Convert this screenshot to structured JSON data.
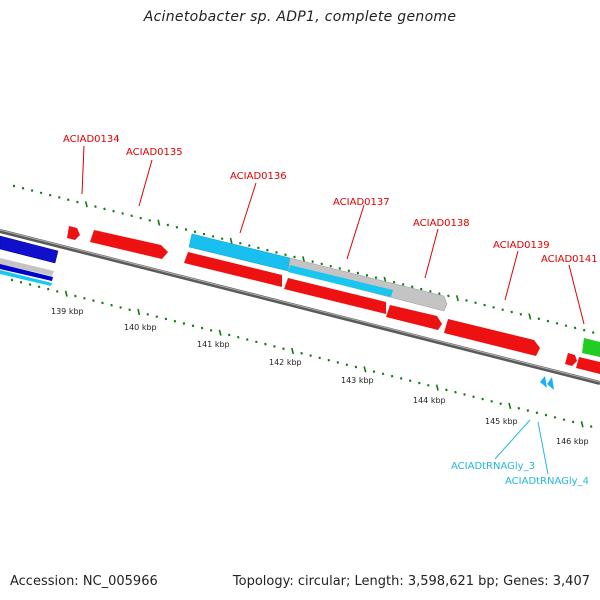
{
  "title": "Acinetobacter sp. ADP1, complete genome",
  "accession_text": "Accession: NC_005966",
  "summary_text": "Topology: circular; Length: 3,598,621 bp; Genes: 3,407",
  "colors": {
    "forward_cds": "#ff0000",
    "reverse_cds": "#ff0000",
    "cds_blue": "#1a8fdc",
    "cds_cyan": "#19c6f0",
    "cds_grey": "#c0c0c0",
    "dark_blue": "#0000cc",
    "green": "#22cc22",
    "trna": "#22b8dd",
    "tick": "#117711",
    "backbone": "#808080"
  },
  "kbp_labels": [
    "139 kbp",
    "140 kbp",
    "141 kbp",
    "142 kbp",
    "143 kbp",
    "144 kbp",
    "145 kbp",
    "146 kbp"
  ],
  "gene_labels": [
    {
      "text": "ACIAD0134",
      "color_key": "forward_cds"
    },
    {
      "text": "ACIAD0135",
      "color_key": "forward_cds"
    },
    {
      "text": "ACIAD0136",
      "color_key": "forward_cds"
    },
    {
      "text": "ACIAD0137",
      "color_key": "forward_cds"
    },
    {
      "text": "ACIAD0138",
      "color_key": "forward_cds"
    },
    {
      "text": "ACIAD0139",
      "color_key": "forward_cds"
    },
    {
      "text": "ACIAD0141",
      "color_key": "forward_cds"
    },
    {
      "text": "ACIADtRNAGly_3",
      "color_key": "trna"
    },
    {
      "text": "ACIADtRNAGly_4",
      "color_key": "trna"
    }
  ]
}
